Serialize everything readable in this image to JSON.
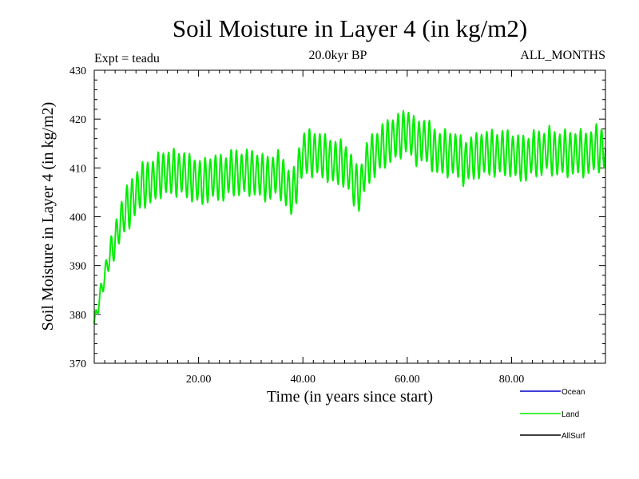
{
  "chart_data": {
    "type": "line",
    "title": "Soil Moisture in Layer 4 (in kg/m2)",
    "subtitle_left": "Expt = teadu",
    "subtitle_center": "20.0kyr BP",
    "subtitle_right": "ALL_MONTHS",
    "xlabel": "Time (in years since start)",
    "ylabel": "Soil Moisture in Layer 4 (in kg/m2)",
    "xlim": [
      0,
      98
    ],
    "ylim": [
      370,
      430
    ],
    "x_ticks": [
      20,
      40,
      60,
      80
    ],
    "x_tick_labels": [
      "20.00",
      "40.00",
      "60.00",
      "80.00"
    ],
    "y_ticks": [
      370,
      380,
      390,
      400,
      410,
      420,
      430
    ],
    "y_tick_labels": [
      "370",
      "380",
      "390",
      "400",
      "410",
      "420",
      "430"
    ],
    "legend": [
      {
        "name": "Ocean",
        "color": "#0000cc"
      },
      {
        "name": "Land",
        "color": "#00ee00"
      },
      {
        "name": "AllSurf",
        "color": "#000000"
      }
    ],
    "series": [
      {
        "name": "Land",
        "color": "#00ee00",
        "x": [
          0,
          1,
          2,
          3,
          4,
          5,
          6,
          7,
          8,
          9,
          10,
          11,
          12,
          13,
          14,
          15,
          16,
          17,
          18,
          19,
          20,
          21,
          22,
          23,
          24,
          25,
          26,
          27,
          28,
          29,
          30,
          31,
          32,
          33,
          34,
          35,
          36,
          37,
          38,
          39,
          40,
          41,
          42,
          43,
          44,
          45,
          46,
          47,
          48,
          49,
          50,
          51,
          52,
          53,
          54,
          55,
          56,
          57,
          58,
          59,
          60,
          61,
          62,
          63,
          64,
          65,
          66,
          67,
          68,
          69,
          70,
          71,
          72,
          73,
          74,
          75,
          76,
          77,
          78,
          79,
          80,
          81,
          82,
          83,
          84,
          85,
          86,
          87,
          88,
          89,
          90,
          91,
          92,
          93,
          94,
          95,
          96,
          97,
          98
        ],
        "y": [
          378,
          383,
          388,
          392,
          395,
          399,
          401,
          403,
          405,
          406,
          407,
          407,
          408,
          409,
          409,
          409,
          409,
          409,
          408,
          408,
          407,
          407,
          408,
          408,
          408,
          408,
          409,
          409,
          409,
          409,
          409,
          409,
          408,
          408,
          408,
          409,
          408,
          406,
          404,
          409,
          413,
          413,
          413,
          413,
          412,
          412,
          411,
          411,
          411,
          409,
          406,
          406,
          410,
          412,
          413,
          414,
          415,
          416,
          416,
          417,
          418,
          416,
          415,
          416,
          415,
          414,
          413,
          413,
          413,
          413,
          412,
          411,
          412,
          412,
          413,
          413,
          413,
          413,
          413,
          413,
          413,
          412,
          412,
          412,
          413,
          413,
          413,
          414,
          413,
          413,
          413,
          413,
          413,
          413,
          413,
          413,
          414,
          414,
          414
        ],
        "annual_cycle_amplitude": 5
      }
    ]
  }
}
